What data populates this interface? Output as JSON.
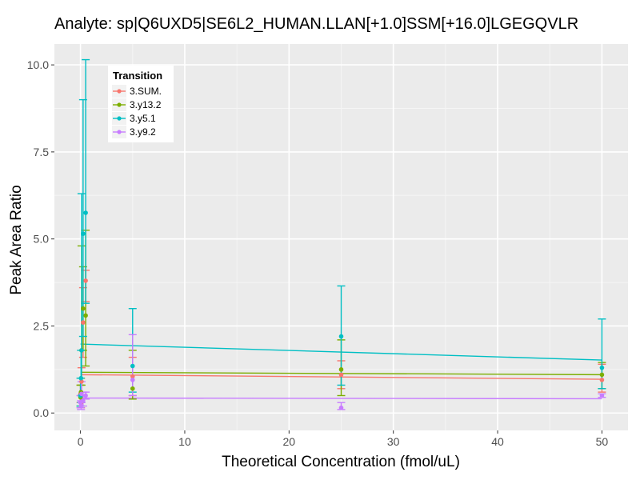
{
  "chart_data": {
    "type": "scatter",
    "title": "Analyte: sp|Q6UXD5|SE6L2_HUMAN.LLAN[+1.0]SSM[+16.0]LGEGQVLR",
    "xlabel": "Theoretical Concentration (fmol/uL)",
    "ylabel": "Peak Area Ratio",
    "xlim": [
      -2.5,
      52.5
    ],
    "ylim": [
      -0.5,
      10.6
    ],
    "x_ticks": [
      0,
      10,
      20,
      30,
      40,
      50
    ],
    "x_tick_labels": [
      "0",
      "10",
      "20",
      "30",
      "40",
      "50"
    ],
    "y_ticks": [
      0.0,
      2.5,
      5.0,
      7.5,
      10.0
    ],
    "y_tick_labels": [
      "0.0",
      "2.5",
      "5.0",
      "7.5",
      "10.0"
    ],
    "grid": true,
    "legend": {
      "title": "Transition",
      "position": "top-left (inside)"
    },
    "series": [
      {
        "name": "3.SUM.",
        "color": "#F8766D",
        "points": [
          {
            "x": 0,
            "y": 0.55,
            "ymin": 0.3,
            "ymax": 0.8
          },
          {
            "x": 0.05,
            "y": 0.3,
            "ymin": 0.15,
            "ymax": 0.5
          },
          {
            "x": 0.1,
            "y": 0.9,
            "ymin": 0.5,
            "ymax": 1.3
          },
          {
            "x": 0.25,
            "y": 2.6,
            "ymin": 1.6,
            "ymax": 3.6
          },
          {
            "x": 0.5,
            "y": 3.8,
            "ymin": 3.2,
            "ymax": 4.1
          },
          {
            "x": 5,
            "y": 1.05,
            "ymin": 0.5,
            "ymax": 1.6
          },
          {
            "x": 25,
            "y": 1.1,
            "ymin": 0.7,
            "ymax": 1.5
          },
          {
            "x": 50,
            "y": 0.95,
            "ymin": 0.6,
            "ymax": 1.4
          }
        ],
        "fit": {
          "x": [
            0,
            50
          ],
          "y": [
            1.1,
            0.97
          ]
        }
      },
      {
        "name": "3.y13.2",
        "color": "#7CAE00",
        "points": [
          {
            "x": 0,
            "y": 0.45,
            "ymin": 0.2,
            "ymax": 0.8
          },
          {
            "x": 0.05,
            "y": 0.6,
            "ymin": 0.3,
            "ymax": 1.0
          },
          {
            "x": 0.1,
            "y": 1.8,
            "ymin": 0.8,
            "ymax": 4.8
          },
          {
            "x": 0.25,
            "y": 3.0,
            "ymin": 1.8,
            "ymax": 4.2
          },
          {
            "x": 0.5,
            "y": 2.8,
            "ymin": 1.35,
            "ymax": 5.25
          },
          {
            "x": 5,
            "y": 0.7,
            "ymin": 0.4,
            "ymax": 1.8
          },
          {
            "x": 25,
            "y": 1.25,
            "ymin": 0.5,
            "ymax": 2.1
          },
          {
            "x": 50,
            "y": 1.1,
            "ymin": 0.7,
            "ymax": 1.45
          }
        ],
        "fit": {
          "x": [
            0,
            50
          ],
          "y": [
            1.17,
            1.1
          ]
        }
      },
      {
        "name": "3.y5.1",
        "color": "#00BFC4",
        "points": [
          {
            "x": 0,
            "y": 0.5,
            "ymin": 0.2,
            "ymax": 1.0
          },
          {
            "x": 0.05,
            "y": 1.0,
            "ymin": 0.3,
            "ymax": 1.8
          },
          {
            "x": 0.1,
            "y": 1.8,
            "ymin": 0.5,
            "ymax": 6.3
          },
          {
            "x": 0.25,
            "y": 5.15,
            "ymin": 2.2,
            "ymax": 9.0
          },
          {
            "x": 0.5,
            "y": 5.75,
            "ymin": 3.15,
            "ymax": 10.15
          },
          {
            "x": 5,
            "y": 1.35,
            "ymin": 0.6,
            "ymax": 3.0
          },
          {
            "x": 25,
            "y": 2.2,
            "ymin": 0.8,
            "ymax": 3.65
          },
          {
            "x": 50,
            "y": 1.3,
            "ymin": 0.7,
            "ymax": 2.7
          }
        ],
        "fit": {
          "x": [
            0,
            50
          ],
          "y": [
            1.98,
            1.52
          ]
        }
      },
      {
        "name": "3.y9.2",
        "color": "#C77CFF",
        "points": [
          {
            "x": 0,
            "y": 0.3,
            "ymin": 0.15,
            "ymax": 0.5
          },
          {
            "x": 0.05,
            "y": 0.2,
            "ymin": 0.1,
            "ymax": 0.35
          },
          {
            "x": 0.1,
            "y": 0.55,
            "ymin": 0.3,
            "ymax": 0.9
          },
          {
            "x": 0.25,
            "y": 0.35,
            "ymin": 0.2,
            "ymax": 0.6
          },
          {
            "x": 0.5,
            "y": 0.5,
            "ymin": 0.4,
            "ymax": 0.6
          },
          {
            "x": 5,
            "y": 0.95,
            "ymin": 0.5,
            "ymax": 2.25
          },
          {
            "x": 25,
            "y": 0.15,
            "ymin": 0.1,
            "ymax": 0.3
          },
          {
            "x": 50,
            "y": 0.5,
            "ymin": 0.45,
            "ymax": 0.55
          }
        ],
        "fit": {
          "x": [
            0,
            50
          ],
          "y": [
            0.43,
            0.41
          ]
        }
      }
    ]
  }
}
